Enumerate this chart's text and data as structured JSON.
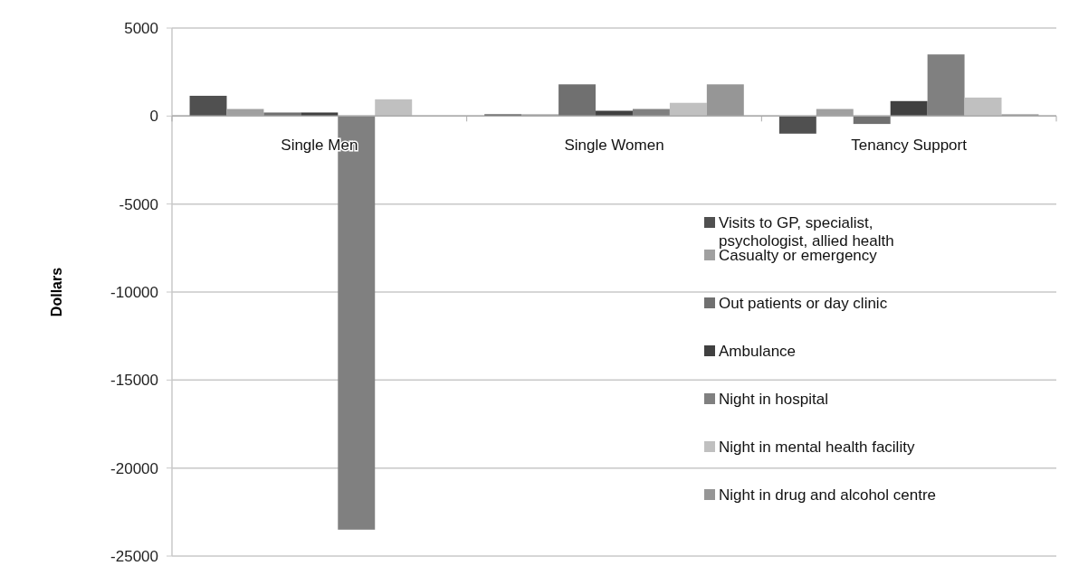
{
  "chart_data": {
    "type": "bar",
    "ylabel": "Dollars",
    "categories": [
      "Single Men",
      "Single Women",
      "Tenancy Support"
    ],
    "series": [
      {
        "name": "Visits to GP, specialist, psychologist, allied health",
        "color": "#505050",
        "values": [
          1150,
          100,
          -1000
        ]
      },
      {
        "name": "Casualty or emergency",
        "color": "#a0a0a0",
        "values": [
          400,
          100,
          400
        ]
      },
      {
        "name": "Out patients or day clinic",
        "color": "#707070",
        "values": [
          200,
          1800,
          -450
        ]
      },
      {
        "name": "Ambulance",
        "color": "#404040",
        "values": [
          200,
          300,
          850
        ]
      },
      {
        "name": "Night in hospital",
        "color": "#808080",
        "values": [
          -23500,
          400,
          3500
        ]
      },
      {
        "name": "Night in mental health facility",
        "color": "#c0c0c0",
        "values": [
          950,
          750,
          1050
        ]
      },
      {
        "name": "Night in drug and alcohol centre",
        "color": "#969696",
        "values": [
          0,
          1800,
          100
        ]
      }
    ],
    "ylim": [
      -25000,
      5000
    ],
    "yticks": [
      -25000,
      -20000,
      -15000,
      -10000,
      -5000,
      0,
      5000
    ],
    "grid": "y",
    "legend": "bottom right"
  }
}
